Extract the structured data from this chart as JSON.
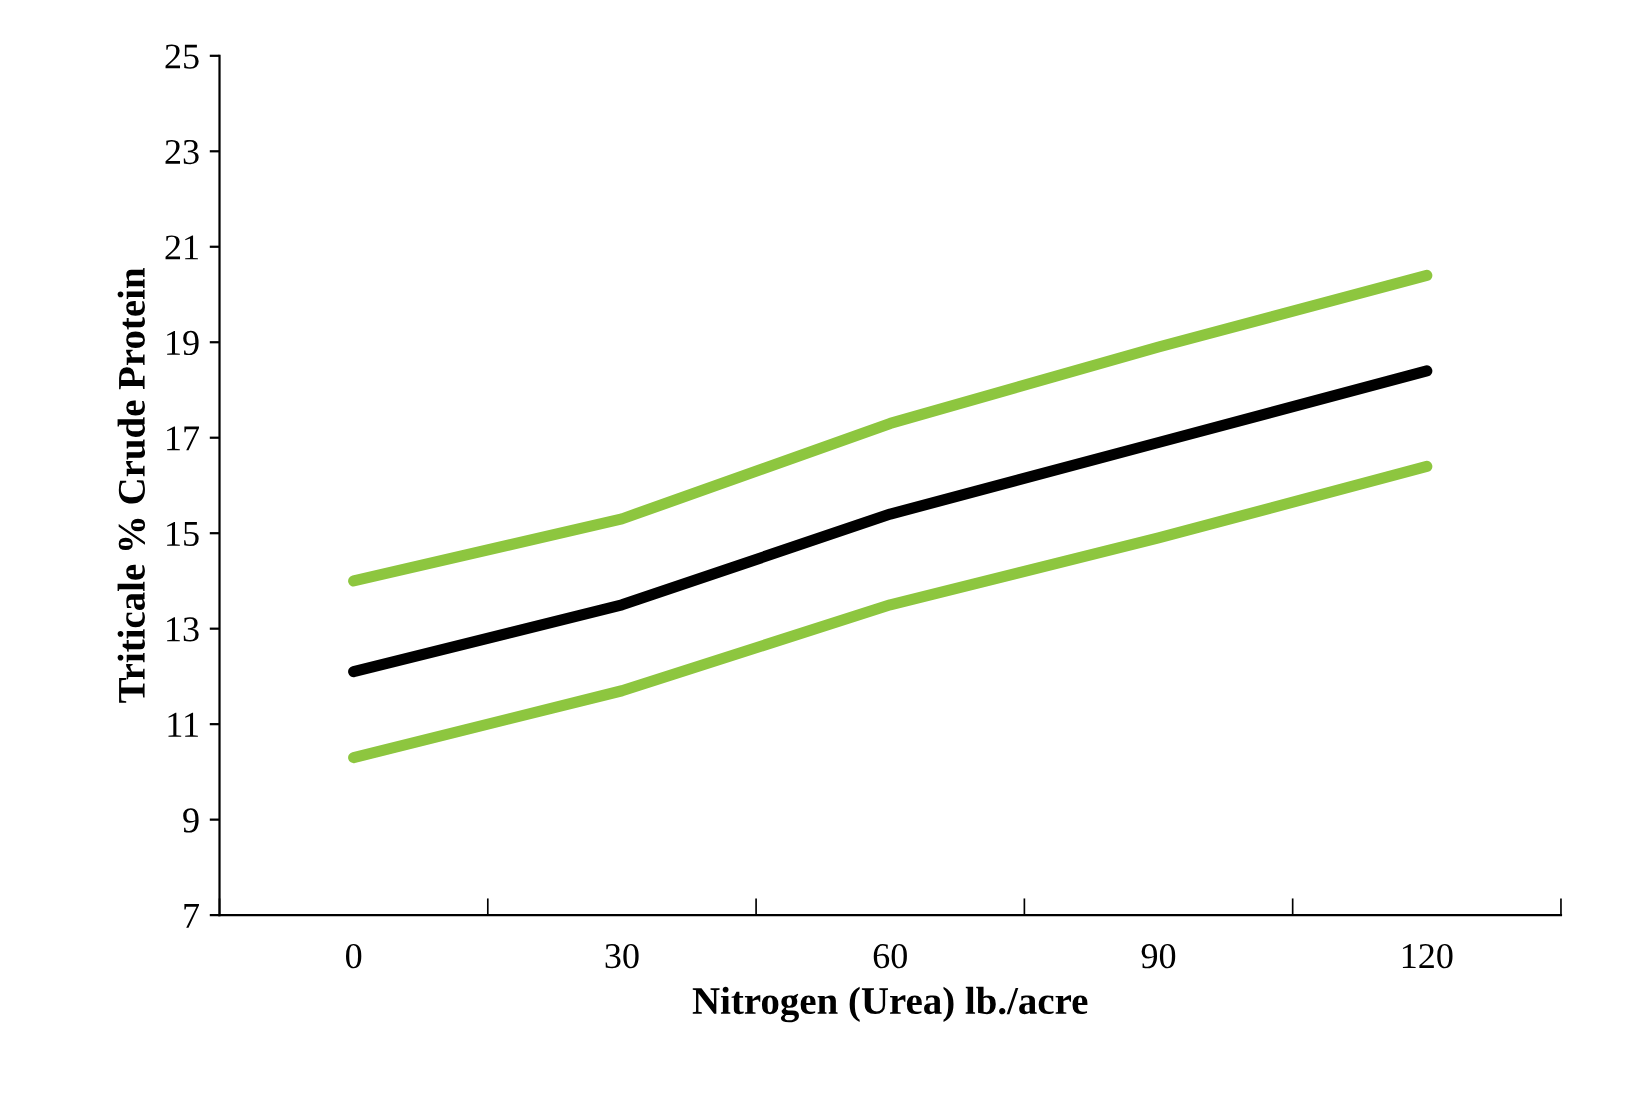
{
  "chart_data": {
    "type": "line",
    "xlabel": "Nitrogen (Urea) lb./acre",
    "ylabel": "Triticale % Crude Protein",
    "categories": [
      "0",
      "30",
      "60",
      "90",
      "120"
    ],
    "series": [
      {
        "color": "#8dc63f",
        "values": [
          14.0,
          15.3,
          17.3,
          18.9,
          20.4
        ]
      },
      {
        "color": "#000000",
        "values": [
          12.1,
          13.5,
          15.4,
          16.9,
          18.4
        ]
      },
      {
        "color": "#8dc63f",
        "values": [
          10.3,
          11.7,
          13.5,
          14.9,
          16.4
        ]
      }
    ],
    "ylim": [
      7,
      25
    ],
    "yticks": [
      7,
      9,
      11,
      13,
      15,
      17,
      19,
      21,
      23,
      25
    ],
    "grid": false,
    "legend": false,
    "marker": "none",
    "line_style": "solid"
  }
}
